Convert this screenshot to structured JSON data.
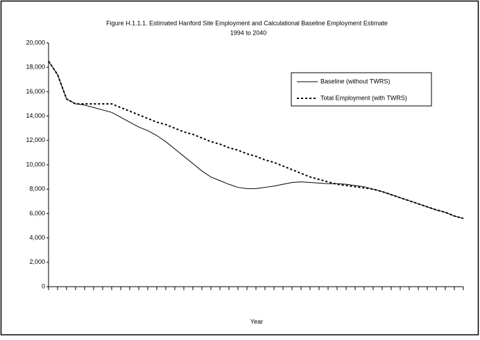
{
  "chart_data": {
    "type": "line",
    "title": "Figure H.1.1.1. Estimated Hanford Site Employment and Calculational Baseline Employment Estimate",
    "subtitle": "1994 to 2040",
    "x_label": "Year",
    "categories": [
      null,
      null,
      null,
      null,
      null,
      null,
      null,
      null,
      null,
      null,
      null,
      null,
      null,
      null,
      null,
      null,
      null,
      null,
      null,
      null,
      null,
      null,
      null,
      null,
      null,
      null,
      null,
      null,
      null,
      null,
      null,
      null,
      null,
      null,
      null,
      null,
      null,
      null,
      null,
      null,
      null,
      null,
      null,
      null,
      null,
      null,
      null
    ],
    "series": [
      {
        "name": "Baseline (without TWRS)",
        "color": "#000000",
        "dash": "none",
        "values": [
          18500,
          17400,
          15400,
          15000,
          14900,
          14700,
          14500,
          14300,
          13900,
          13500,
          13100,
          12800,
          12400,
          11900,
          11300,
          10700,
          10100,
          9500,
          9000,
          8700,
          8400,
          8150,
          8050,
          8050,
          8150,
          8250,
          8400,
          8550,
          8600,
          8550,
          8500,
          8450,
          8450,
          8400,
          8300,
          8200,
          8000,
          7800,
          7550,
          7300,
          7050,
          6800,
          6550,
          6300,
          6100,
          5800,
          5600
        ]
      },
      {
        "name": "Total Employment (with TWRS)",
        "color": "#000000",
        "dash": "3,3",
        "values": [
          18500,
          17400,
          15400,
          15000,
          15000,
          15000,
          15000,
          15000,
          14700,
          14400,
          14100,
          13800,
          13500,
          13300,
          13000,
          12700,
          12500,
          12200,
          11900,
          11700,
          11400,
          11200,
          10900,
          10700,
          10400,
          10200,
          9900,
          9600,
          9300,
          9000,
          8800,
          8600,
          8400,
          8300,
          8200,
          8100,
          8000,
          7800,
          7550,
          7300,
          7050,
          6800,
          6550,
          6300,
          6100,
          5800,
          5600
        ]
      }
    ],
    "ylim": [
      0,
      20000
    ],
    "yticks": [
      0,
      {
        "value": 2000,
        "label": "2,000"
      },
      {
        "value": 4000,
        "label": "4,000"
      },
      {
        "value": 6000,
        "label": "6,000"
      },
      {
        "value": 8000,
        "label": "8,000"
      },
      {
        "value": 10000,
        "label": "10,000"
      },
      {
        "value": 12000,
        "label": "12,000"
      },
      {
        "value": 14000,
        "label": "14,000"
      },
      {
        "value": 16000,
        "label": "16,000"
      },
      {
        "value": 18000,
        "label": "18,000"
      },
      {
        "value": 20000,
        "label": "20,000"
      }
    ],
    "grid": false
  }
}
